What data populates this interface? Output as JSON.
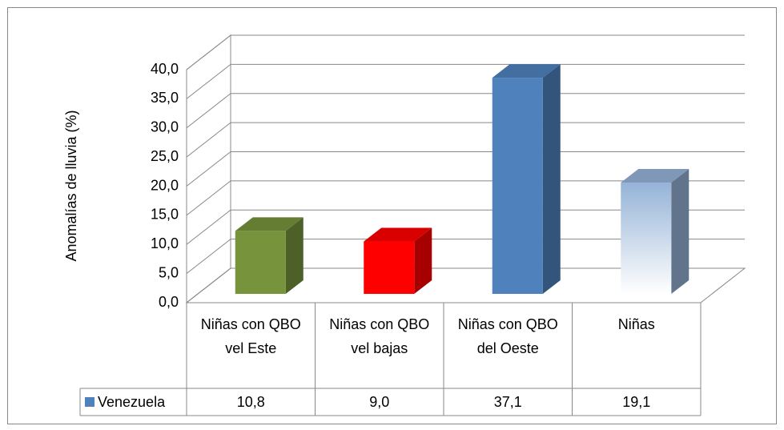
{
  "chart_data": {
    "type": "bar3d",
    "y_axis_label": "Anomalías de lluvia (%)",
    "categories": [
      "Niñas con QBO vel Este",
      "Niñas con QBO vel bajas",
      "Niñas con QBO del Oeste",
      "Niñas"
    ],
    "series": [
      {
        "name": "Venezuela",
        "color": "#4f81bd",
        "values": [
          10.8,
          9.0,
          37.1,
          19.1
        ],
        "value_labels": [
          "10,8",
          "9,0",
          "37,1",
          "19,1"
        ],
        "colors": [
          "#77933c",
          "#ff0000",
          "#4f81bd",
          "#b9cde5"
        ]
      }
    ],
    "ylim": [
      0,
      40
    ],
    "yticks": [
      {
        "value": 0,
        "label": "0,0"
      },
      {
        "value": 5,
        "label": "5,0"
      },
      {
        "value": 10,
        "label": "10,0"
      },
      {
        "value": 15,
        "label": "15,0"
      },
      {
        "value": 20,
        "label": "20,0"
      },
      {
        "value": 25,
        "label": "25,0"
      },
      {
        "value": 30,
        "label": "30,0"
      },
      {
        "value": 35,
        "label": "35,0"
      },
      {
        "value": 40,
        "label": "40,0"
      }
    ],
    "grid": true,
    "data_table": true
  }
}
